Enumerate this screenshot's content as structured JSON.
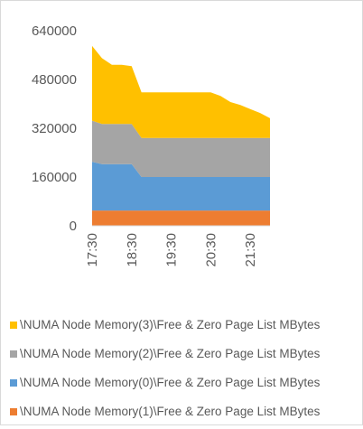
{
  "chart_data": {
    "type": "area",
    "stacked": true,
    "x": [
      "17:30",
      "17:45",
      "18:00",
      "18:15",
      "18:30",
      "18:45",
      "19:00",
      "19:15",
      "19:30",
      "19:45",
      "20:00",
      "20:15",
      "20:30",
      "20:45",
      "21:00",
      "21:15",
      "21:30",
      "21:45",
      "22:00"
    ],
    "xticks": [
      "17:30",
      "18:30",
      "19:30",
      "20:30",
      "21:30"
    ],
    "yticks": [
      "0",
      "160000",
      "320000",
      "480000",
      "640000"
    ],
    "ylim": [
      0,
      640000
    ],
    "xlabel": "",
    "ylabel": "",
    "series": [
      {
        "name": "\\NUMA Node Memory(1)\\Free & Zero Page List MBytes",
        "color": "#ed7d31",
        "values": [
          50000,
          50000,
          50000,
          50000,
          50000,
          50000,
          50000,
          50000,
          50000,
          50000,
          50000,
          50000,
          50000,
          50000,
          50000,
          50000,
          50000,
          50000,
          50000
        ]
      },
      {
        "name": "\\NUMA Node Memory(0)\\Free & Zero Page List MBytes",
        "color": "#5b9bd5",
        "values": [
          160000,
          152000,
          152000,
          152000,
          152000,
          110000,
          110000,
          110000,
          110000,
          110000,
          110000,
          110000,
          110000,
          110000,
          110000,
          110000,
          110000,
          110000,
          110000
        ]
      },
      {
        "name": "\\NUMA Node Memory(2)\\Free & Zero Page List MBytes",
        "color": "#a5a5a5",
        "values": [
          135000,
          132000,
          132000,
          132000,
          132000,
          128000,
          128000,
          128000,
          128000,
          128000,
          128000,
          128000,
          128000,
          128000,
          128000,
          128000,
          128000,
          128000,
          128000
        ]
      },
      {
        "name": "\\NUMA Node Memory(3)\\Free & Zero Page List MBytes",
        "color": "#ffc000",
        "values": [
          245000,
          216000,
          194000,
          194000,
          190000,
          150000,
          150000,
          150000,
          150000,
          150000,
          150000,
          150000,
          150000,
          138000,
          118000,
          108000,
          95000,
          82000,
          65000
        ]
      }
    ],
    "legend": "bottom",
    "grid": false
  },
  "legend_items": [
    {
      "label": "\\NUMA Node Memory(3)\\Free & Zero Page List MBytes",
      "color": "#ffc000"
    },
    {
      "label": "\\NUMA Node Memory(2)\\Free & Zero Page List MBytes",
      "color": "#a5a5a5"
    },
    {
      "label": "\\NUMA Node Memory(0)\\Free & Zero Page List MBytes",
      "color": "#5b9bd5"
    },
    {
      "label": "\\NUMA Node Memory(1)\\Free & Zero Page List MBytes",
      "color": "#ed7d31"
    }
  ]
}
